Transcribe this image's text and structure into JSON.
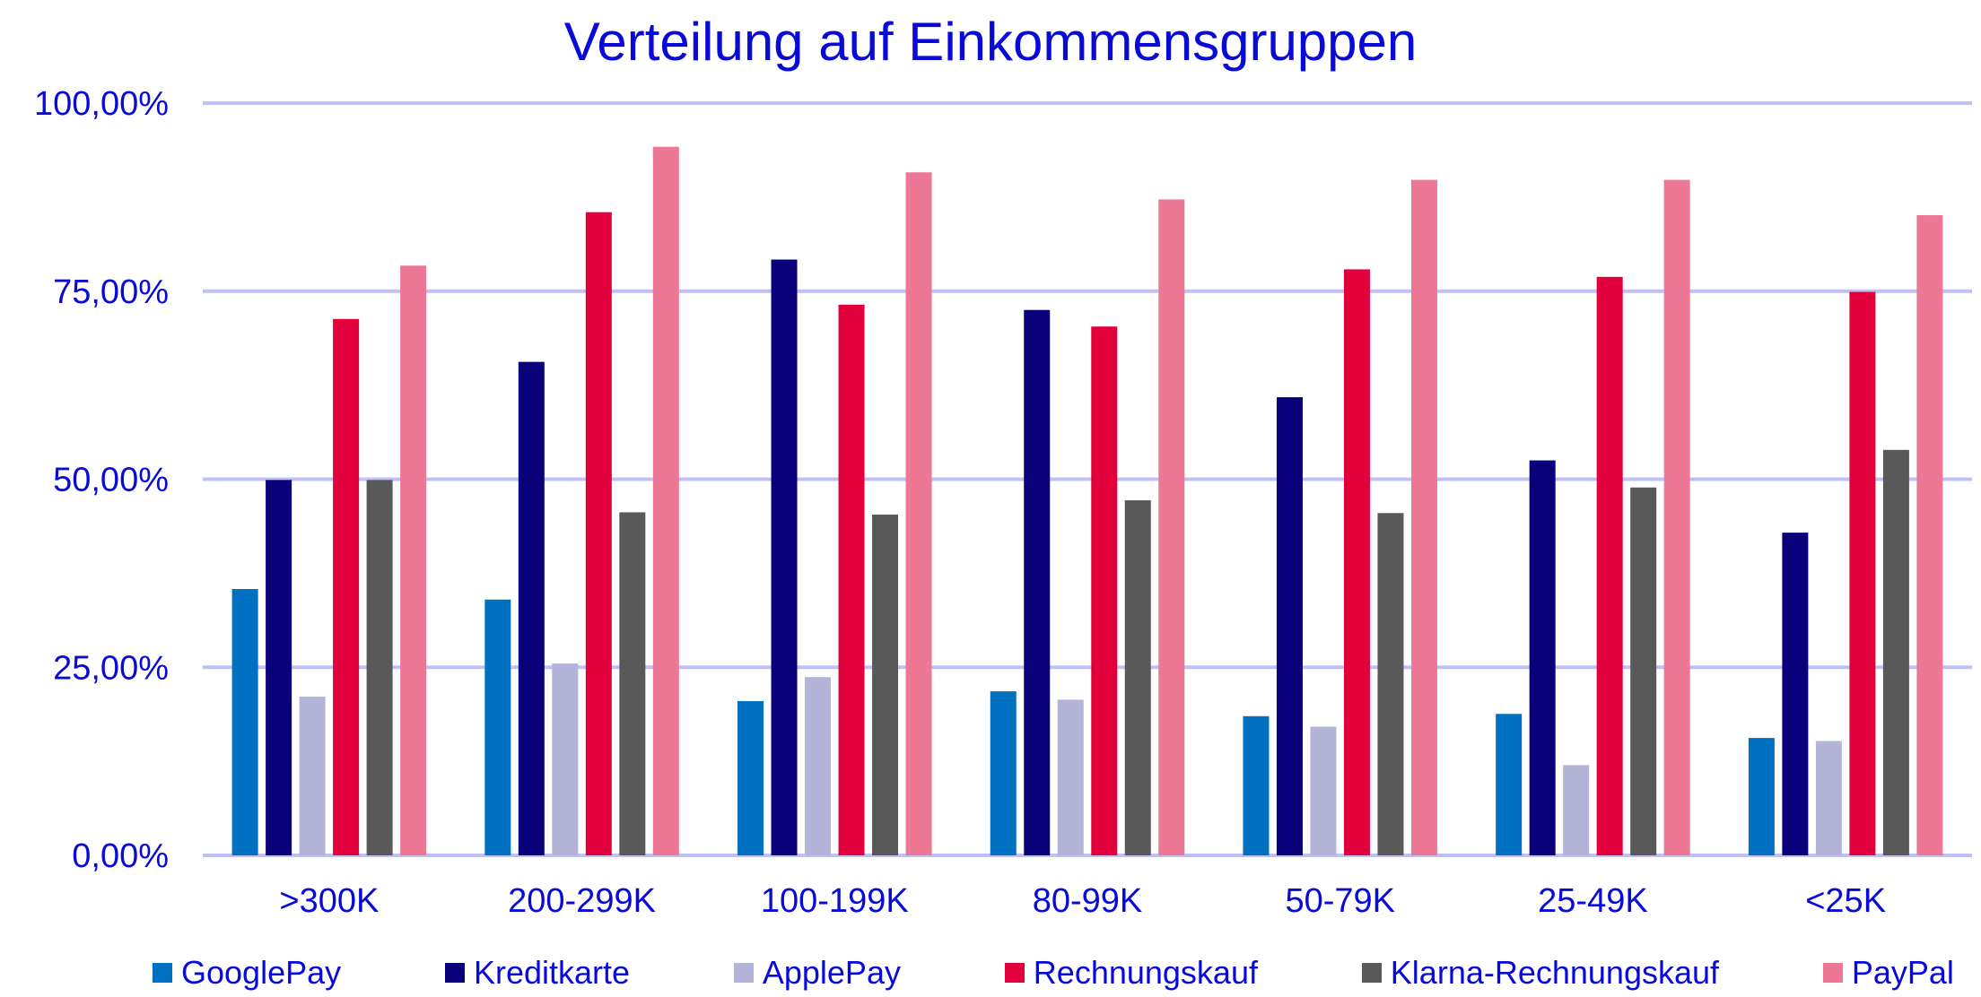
{
  "chart_data": {
    "type": "bar",
    "title": "Verteilung auf Einkommensgruppen",
    "xlabel": "",
    "ylabel": "",
    "ylim": [
      0,
      100
    ],
    "yticks": [
      "0,00%",
      "25,00%",
      "50,00%",
      "75,00%",
      "100,00%"
    ],
    "ytick_values": [
      0,
      25,
      50,
      75,
      100
    ],
    "grid": true,
    "legend_position": "bottom",
    "categories": [
      ">300K",
      "200-299K",
      "100-199K",
      "80-99K",
      "50-79K",
      "25-49K",
      "<25K"
    ],
    "series": [
      {
        "name": "GooglePay",
        "color": "#0070c0",
        "values": [
          35.4,
          34.0,
          20.5,
          21.8,
          18.5,
          18.8,
          15.6
        ]
      },
      {
        "name": "Kreditkarte",
        "color": "#0a007a",
        "values": [
          49.9,
          65.6,
          79.2,
          72.5,
          60.9,
          52.5,
          42.9
        ]
      },
      {
        "name": "ApplePay",
        "color": "#b4b4d9",
        "values": [
          21.1,
          25.5,
          23.7,
          20.7,
          17.1,
          12.0,
          15.2
        ]
      },
      {
        "name": "Rechnungskauf",
        "color": "#e2003c",
        "values": [
          71.3,
          85.5,
          73.2,
          70.3,
          77.9,
          76.9,
          74.9
        ]
      },
      {
        "name": "Klarna-Rechnungskauf",
        "color": "#595959",
        "values": [
          49.9,
          45.6,
          45.3,
          47.2,
          45.5,
          48.9,
          53.9
        ]
      },
      {
        "name": "PayPal",
        "color": "#ed7896",
        "values": [
          78.4,
          94.2,
          90.8,
          87.2,
          89.8,
          89.8,
          85.1
        ]
      }
    ],
    "gridline_color": "#c0c0f8",
    "text_color": "#0a0ad8"
  }
}
